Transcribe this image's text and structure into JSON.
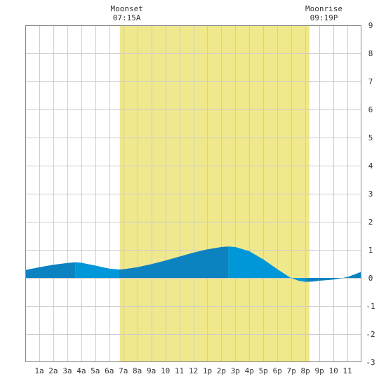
{
  "chart_data": {
    "type": "area",
    "title": "",
    "xlabel": "",
    "ylabel": "",
    "x_tick_labels": [
      "1a",
      "2a",
      "3a",
      "4a",
      "5a",
      "6a",
      "7a",
      "8a",
      "9a",
      "10",
      "11",
      "12",
      "1p",
      "2p",
      "3p",
      "4p",
      "5p",
      "6p",
      "7p",
      "8p",
      "9p",
      "10",
      "11"
    ],
    "y_tick_labels": [
      "9",
      "8",
      "7",
      "6",
      "5",
      "4",
      "3",
      "2",
      "1",
      "0",
      "-1",
      "-2",
      "-3"
    ],
    "xlim": [
      0,
      24
    ],
    "ylim": [
      -3,
      9
    ],
    "grid": true,
    "daylight": {
      "start_hour": 6.75,
      "end_hour": 20.3,
      "color": "#f0e88c"
    },
    "annotations": [
      {
        "name": "Moonset",
        "time": "07:15A",
        "hour": 7.25
      },
      {
        "name": "Moonrise",
        "time": "09:19P",
        "hour": 21.32
      }
    ],
    "series": [
      {
        "x": [
          0,
          1,
          2,
          3,
          3.6,
          4,
          5,
          6,
          6.7,
          7,
          8,
          9,
          10,
          11,
          12,
          13,
          14,
          14.5,
          15,
          16,
          17,
          18,
          18.9,
          19.5,
          20,
          20.5,
          21,
          22,
          23,
          24
        ],
        "values": [
          0.28,
          0.38,
          0.47,
          0.53,
          0.56,
          0.54,
          0.44,
          0.33,
          0.3,
          0.31,
          0.38,
          0.49,
          0.62,
          0.76,
          0.9,
          1.02,
          1.1,
          1.12,
          1.1,
          0.95,
          0.66,
          0.31,
          0.02,
          -0.1,
          -0.14,
          -0.13,
          -0.1,
          -0.06,
          0.03,
          0.22
        ]
      }
    ],
    "colors": {
      "rising": "#0d82c1",
      "falling": "#0097d8",
      "grid": "#cccccc",
      "frame": "#888888"
    }
  }
}
